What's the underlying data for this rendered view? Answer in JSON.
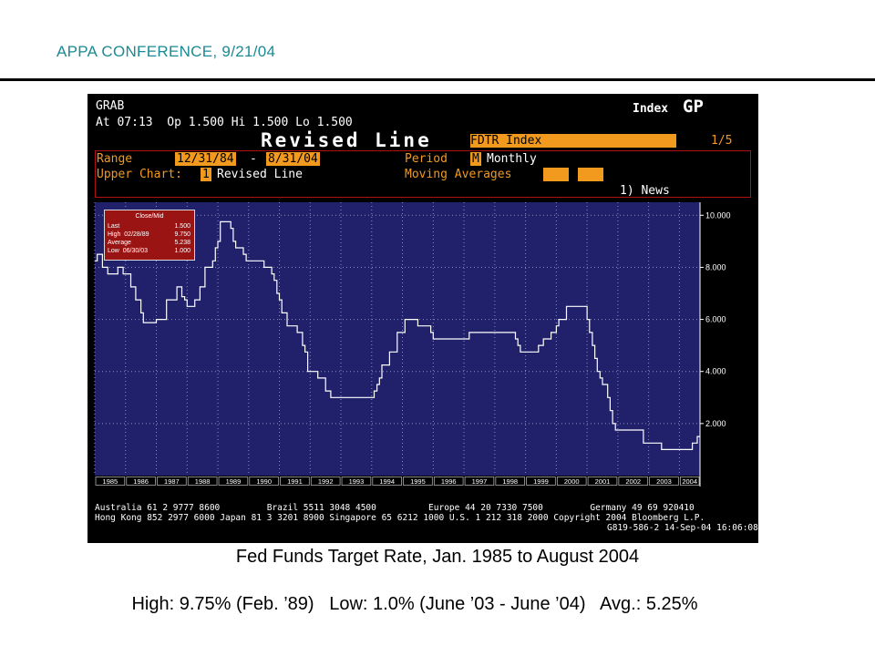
{
  "slide": {
    "header": "APPA CONFERENCE, 9/21/04",
    "caption": "Fed Funds Target Rate, Jan. 1985 to August 2004",
    "stats": "High: 9.75% (Feb. ’89)   Low: 1.0% (June ’03 - June ’04)   Avg.: 5.25%"
  },
  "terminal": {
    "header": {
      "grab": "GRAB",
      "quote": "At 07:13  Op 1.500 Hi 1.500 Lo 1.500",
      "index_label": "Index",
      "function_code": "GP",
      "chart_title": "Revised Line",
      "ticker": "FDTR Index",
      "page": "1/5",
      "range_label": "Range",
      "range_start": "12/31/84",
      "range_dash": "-",
      "range_end": "8/31/04",
      "period_label": "Period",
      "period_code": "M",
      "period_value": "Monthly",
      "upper_chart_label": "Upper Chart:",
      "upper_chart_code": "1",
      "upper_chart_value": "Revised Line",
      "moving_averages_label": "Moving Averages",
      "news": "1) News"
    },
    "footer": {
      "line1": "Australia 61 2 9777 8600         Brazil 5511 3048 4500          Europe 44 20 7330 7500         Germany 49 69 920410",
      "line2": "Hong Kong 852 2977 6000 Japan 81 3 3201 8900 Singapore 65 6212 1000 U.S. 1 212 318 2000 Copyright 2004 Bloomberg L.P.",
      "line3": "G819-586-2 14-Sep-04 16:06:08"
    },
    "colors": {
      "background": "#000000",
      "plot_area": "#21206b",
      "line": "#ffffff",
      "highlight": "#f29a1e",
      "legend_box": "#9a1414",
      "panel_border": "#b01010"
    }
  },
  "chart_data": {
    "type": "line",
    "x_unit": "year",
    "x_ticks": [
      "1985",
      "1986",
      "1987",
      "1988",
      "1989",
      "1990",
      "1991",
      "1992",
      "1993",
      "1994",
      "1995",
      "1996",
      "1997",
      "1998",
      "1999",
      "2000",
      "2001",
      "2002",
      "2003",
      "2004"
    ],
    "y_ticks": [
      "10.000",
      "8.000",
      "6.000",
      "4.000",
      "2.000"
    ],
    "ylim": [
      0,
      10.5
    ],
    "xlim": [
      1985.0,
      2004.67
    ],
    "grid": true,
    "legend": {
      "placement": "top-left",
      "title": "Close/Mid",
      "rows": [
        {
          "label": "Last",
          "value": "1.500"
        },
        {
          "label": "High  02/28/89",
          "value": "9.750"
        },
        {
          "label": "Average",
          "value": "5.238"
        },
        {
          "label": "Low  06/30/03",
          "value": "1.000"
        }
      ]
    },
    "series": [
      {
        "points": [
          [
            1985.0,
            8.25
          ],
          [
            1985.08,
            8.5
          ],
          [
            1985.17,
            8.5
          ],
          [
            1985.25,
            8.0
          ],
          [
            1985.42,
            7.75
          ],
          [
            1985.5,
            7.75
          ],
          [
            1985.75,
            8.0
          ],
          [
            1985.92,
            7.75
          ],
          [
            1986.17,
            7.25
          ],
          [
            1986.33,
            6.75
          ],
          [
            1986.5,
            6.25
          ],
          [
            1986.58,
            5.875
          ],
          [
            1986.92,
            5.875
          ],
          [
            1987.0,
            6.0
          ],
          [
            1987.33,
            6.75
          ],
          [
            1987.67,
            7.25
          ],
          [
            1987.83,
            6.875
          ],
          [
            1987.92,
            6.75
          ],
          [
            1988.0,
            6.5
          ],
          [
            1988.25,
            6.75
          ],
          [
            1988.42,
            7.25
          ],
          [
            1988.58,
            8.0
          ],
          [
            1988.83,
            8.25
          ],
          [
            1988.92,
            8.75
          ],
          [
            1989.0,
            9.0
          ],
          [
            1989.08,
            9.75
          ],
          [
            1989.33,
            9.75
          ],
          [
            1989.42,
            9.5
          ],
          [
            1989.5,
            9.0
          ],
          [
            1989.58,
            8.75
          ],
          [
            1989.83,
            8.5
          ],
          [
            1989.92,
            8.25
          ],
          [
            1990.5,
            8.0
          ],
          [
            1990.75,
            7.75
          ],
          [
            1990.83,
            7.5
          ],
          [
            1990.92,
            7.0
          ],
          [
            1991.0,
            6.75
          ],
          [
            1991.08,
            6.25
          ],
          [
            1991.25,
            5.75
          ],
          [
            1991.58,
            5.5
          ],
          [
            1991.75,
            5.0
          ],
          [
            1991.83,
            4.75
          ],
          [
            1991.92,
            4.0
          ],
          [
            1992.25,
            3.75
          ],
          [
            1992.5,
            3.25
          ],
          [
            1992.67,
            3.0
          ],
          [
            1994.08,
            3.25
          ],
          [
            1994.17,
            3.5
          ],
          [
            1994.25,
            3.75
          ],
          [
            1994.33,
            4.25
          ],
          [
            1994.58,
            4.75
          ],
          [
            1994.83,
            5.5
          ],
          [
            1995.08,
            6.0
          ],
          [
            1995.5,
            5.75
          ],
          [
            1995.92,
            5.5
          ],
          [
            1996.0,
            5.25
          ],
          [
            1997.17,
            5.5
          ],
          [
            1998.67,
            5.25
          ],
          [
            1998.75,
            5.0
          ],
          [
            1998.83,
            4.75
          ],
          [
            1999.42,
            5.0
          ],
          [
            1999.58,
            5.25
          ],
          [
            1999.83,
            5.5
          ],
          [
            2000.0,
            5.75
          ],
          [
            2000.08,
            6.0
          ],
          [
            2000.33,
            6.5
          ],
          [
            2001.0,
            6.0
          ],
          [
            2001.08,
            5.5
          ],
          [
            2001.17,
            5.0
          ],
          [
            2001.25,
            4.5
          ],
          [
            2001.33,
            4.0
          ],
          [
            2001.42,
            3.75
          ],
          [
            2001.5,
            3.5
          ],
          [
            2001.67,
            3.0
          ],
          [
            2001.75,
            2.5
          ],
          [
            2001.83,
            2.0
          ],
          [
            2001.92,
            1.75
          ],
          [
            2002.83,
            1.25
          ],
          [
            2003.42,
            1.0
          ],
          [
            2004.42,
            1.25
          ],
          [
            2004.58,
            1.5
          ]
        ]
      }
    ]
  }
}
